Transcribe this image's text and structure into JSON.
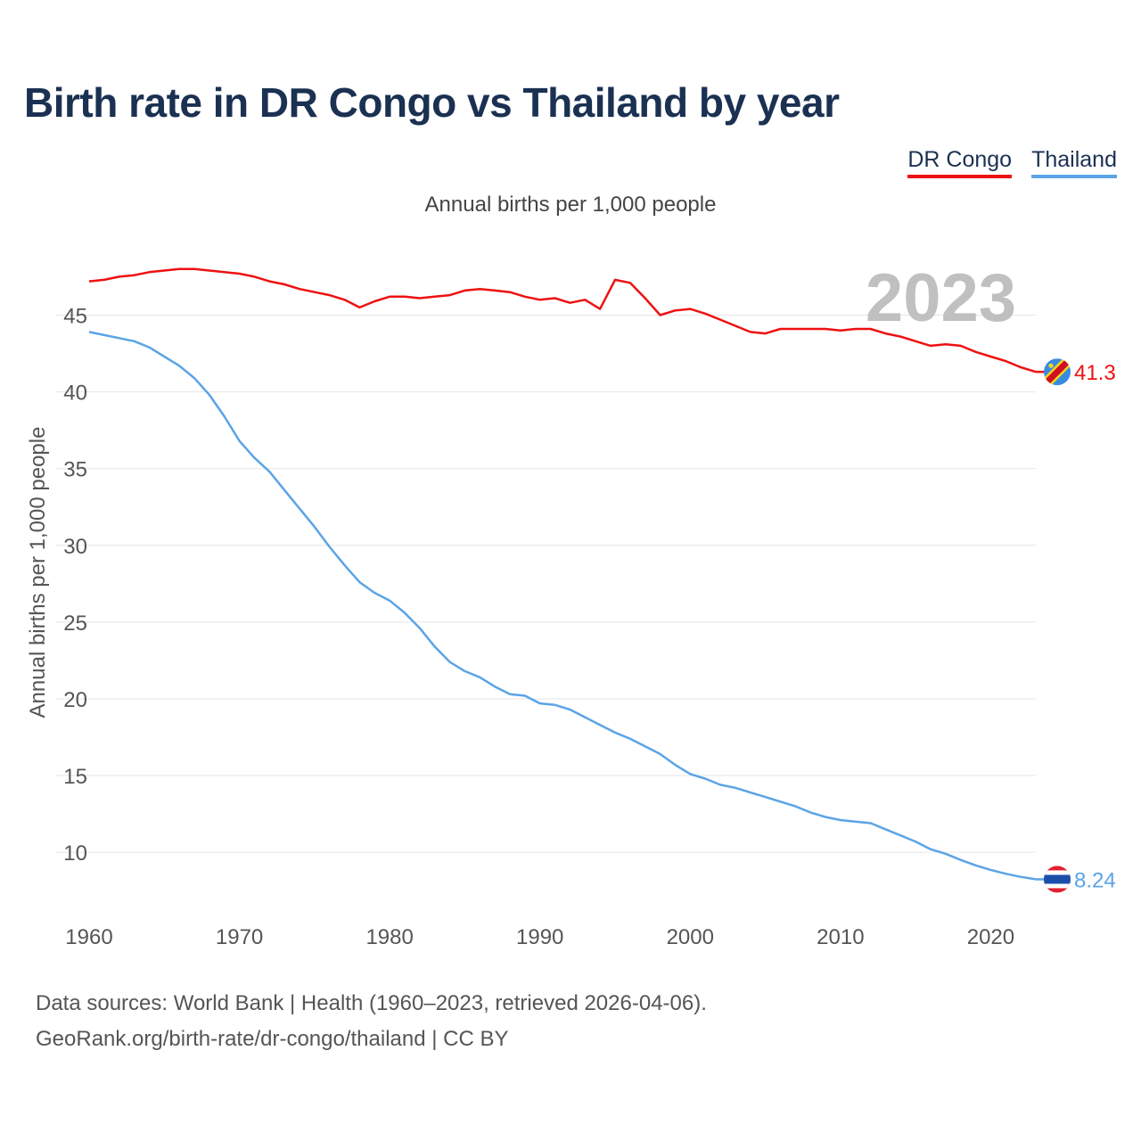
{
  "title": "Birth rate in DR Congo vs Thailand by year",
  "subtitle": "Annual births per 1,000 people",
  "legend": {
    "congo": "DR Congo",
    "thailand": "Thailand"
  },
  "colors": {
    "congo": "#ee1111",
    "thailand": "#5ba4e6",
    "title": "#1b3152",
    "grid": "#e6e6e6",
    "year_watermark": "#c0c0c0"
  },
  "year_label": "2023",
  "footer": {
    "line1": "Data sources: World Bank | Health (1960–2023, retrieved 2026-04-06).",
    "line2": "GeoRank.org/birth-rate/dr-congo/thailand | CC BY"
  },
  "chart_data": {
    "type": "line",
    "title": "Birth rate in DR Congo vs Thailand by year",
    "xlabel": "",
    "ylabel": "Annual births per 1,000 people",
    "xlim": [
      1960,
      2023
    ],
    "ylim": [
      6,
      49.5
    ],
    "x_ticks": [
      1960,
      1970,
      1980,
      1990,
      2000,
      2010,
      2020
    ],
    "y_ticks": [
      10,
      15,
      20,
      25,
      30,
      35,
      40,
      45
    ],
    "grid": true,
    "legend_position": "top-right",
    "end_labels": {
      "congo": "41.3",
      "thailand": "8.24"
    },
    "icons": {
      "congo": "dr-congo-flag-icon",
      "thailand": "thailand-flag-icon"
    },
    "x": [
      1960,
      1961,
      1962,
      1963,
      1964,
      1965,
      1966,
      1967,
      1968,
      1969,
      1970,
      1971,
      1972,
      1973,
      1974,
      1975,
      1976,
      1977,
      1978,
      1979,
      1980,
      1981,
      1982,
      1983,
      1984,
      1985,
      1986,
      1987,
      1988,
      1989,
      1990,
      1991,
      1992,
      1993,
      1994,
      1995,
      1996,
      1997,
      1998,
      1999,
      2000,
      2001,
      2002,
      2003,
      2004,
      2005,
      2006,
      2007,
      2008,
      2009,
      2010,
      2011,
      2012,
      2013,
      2014,
      2015,
      2016,
      2017,
      2018,
      2019,
      2020,
      2021,
      2022,
      2023
    ],
    "series": [
      {
        "name": "DR Congo",
        "key": "congo",
        "values": [
          47.2,
          47.3,
          47.5,
          47.6,
          47.8,
          47.9,
          48.0,
          48.0,
          47.9,
          47.8,
          47.7,
          47.5,
          47.2,
          47.0,
          46.7,
          46.5,
          46.3,
          46.0,
          45.5,
          45.9,
          46.2,
          46.2,
          46.1,
          46.2,
          46.3,
          46.6,
          46.7,
          46.6,
          46.5,
          46.2,
          46.0,
          46.1,
          45.8,
          46.0,
          45.4,
          47.3,
          47.1,
          46.1,
          45.0,
          45.3,
          45.4,
          45.1,
          44.7,
          44.3,
          43.9,
          43.8,
          44.1,
          44.1,
          44.1,
          44.1,
          44.0,
          44.1,
          44.1,
          43.8,
          43.6,
          43.3,
          43.0,
          43.1,
          43.0,
          42.6,
          42.3,
          42.0,
          41.6,
          41.3
        ]
      },
      {
        "name": "Thailand",
        "key": "thailand",
        "values": [
          43.9,
          43.7,
          43.5,
          43.3,
          42.9,
          42.3,
          41.7,
          40.9,
          39.8,
          38.4,
          36.8,
          35.7,
          34.8,
          33.6,
          32.4,
          31.2,
          29.9,
          28.7,
          27.6,
          26.9,
          26.4,
          25.6,
          24.6,
          23.4,
          22.4,
          21.8,
          21.4,
          20.8,
          20.3,
          20.2,
          19.7,
          19.6,
          19.3,
          18.8,
          18.3,
          17.8,
          17.4,
          16.9,
          16.4,
          15.7,
          15.1,
          14.8,
          14.4,
          14.2,
          13.9,
          13.6,
          13.3,
          13.0,
          12.6,
          12.3,
          12.1,
          12.0,
          11.9,
          11.5,
          11.1,
          10.7,
          10.2,
          9.9,
          9.5,
          9.15,
          8.85,
          8.6,
          8.4,
          8.24
        ]
      }
    ]
  }
}
